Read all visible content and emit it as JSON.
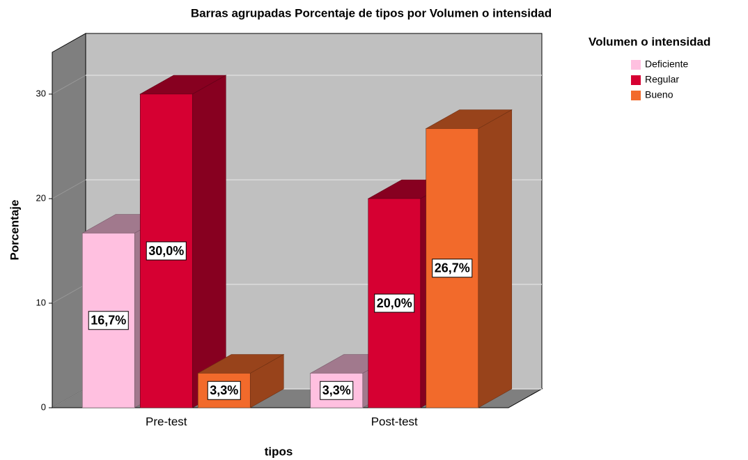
{
  "chart_data": {
    "type": "bar3d",
    "title": "Barras agrupadas Porcentaje de tipos por Volumen o intensidad",
    "x_label": "tipos",
    "y_label": "Porcentaje",
    "legend_title": "Volumen o intensidad",
    "categories": [
      "Pre-test",
      "Post-test"
    ],
    "series": [
      {
        "name": "Deficiente",
        "color": "#ffc0e0",
        "values": [
          16.7,
          3.3
        ],
        "value_labels": [
          "16,7%",
          "3,3%"
        ]
      },
      {
        "name": "Regular",
        "color": "#d60032",
        "values": [
          30.0,
          20.0
        ],
        "value_labels": [
          "30,0%",
          "20,0%"
        ]
      },
      {
        "name": "Bueno",
        "color": "#f26a2b",
        "values": [
          3.3,
          26.7
        ],
        "value_labels": [
          "3,3%",
          "26,7%"
        ]
      }
    ],
    "ylim": [
      0,
      34
    ],
    "yticks": [
      0,
      10,
      20,
      30
    ],
    "grid": true,
    "legend": "right"
  }
}
